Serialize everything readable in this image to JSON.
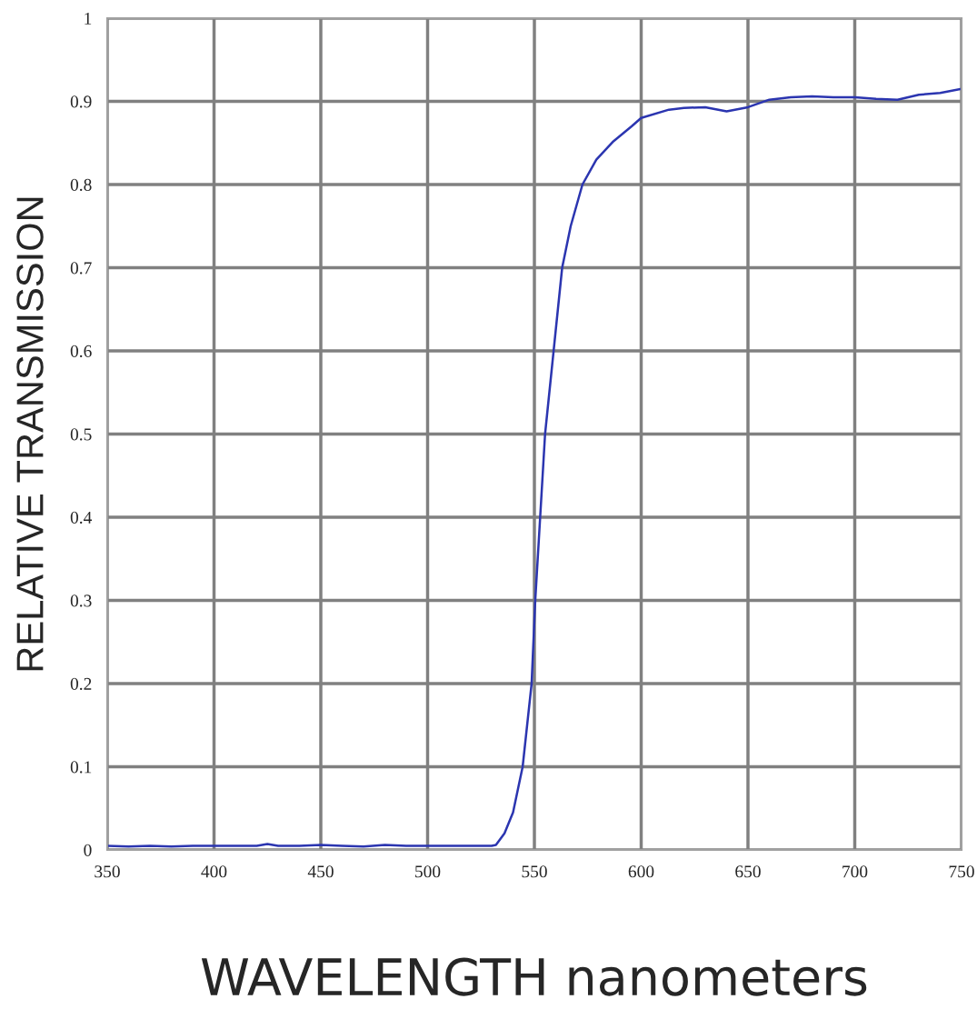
{
  "chart_data": {
    "type": "line",
    "xlabel": "WAVELENGTH nanometers",
    "ylabel": "RELATIVE TRANSMISSION",
    "series": [
      {
        "color": "#2b35b0",
        "x": [
          350,
          360,
          370,
          380,
          390,
          400,
          410,
          420,
          425,
          430,
          440,
          450,
          460,
          470,
          480,
          490,
          500,
          510,
          520,
          530,
          532,
          536,
          540,
          544.5,
          548.7,
          550.4,
          552.7,
          555,
          559,
          563,
          567,
          572.5,
          579,
          587,
          595.5,
          600,
          613,
          620,
          630,
          640,
          650,
          660,
          670,
          680,
          690,
          700,
          710,
          720,
          730,
          740,
          750
        ],
        "values": [
          0.005,
          0.004,
          0.005,
          0.004,
          0.005,
          0.005,
          0.005,
          0.005,
          0.007,
          0.005,
          0.005,
          0.006,
          0.005,
          0.004,
          0.006,
          0.005,
          0.005,
          0.005,
          0.005,
          0.005,
          0.006,
          0.02,
          0.045,
          0.1,
          0.2,
          0.3,
          0.4,
          0.5,
          0.6,
          0.7,
          0.75,
          0.8,
          0.83,
          0.852,
          0.87,
          0.88,
          0.89,
          0.892,
          0.893,
          0.888,
          0.893,
          0.902,
          0.905,
          0.906,
          0.905,
          0.905,
          0.903,
          0.902,
          0.908,
          0.91,
          0.915
        ]
      }
    ],
    "xlim": [
      350,
      750
    ],
    "xticks": [
      350,
      400,
      450,
      500,
      550,
      600,
      650,
      700,
      750
    ],
    "ylim": [
      0,
      1
    ],
    "yticks": [
      0,
      0.1,
      0.2,
      0.3,
      0.4,
      0.5,
      0.6,
      0.7,
      0.8,
      0.9,
      1
    ],
    "grid": true,
    "legend": false
  }
}
